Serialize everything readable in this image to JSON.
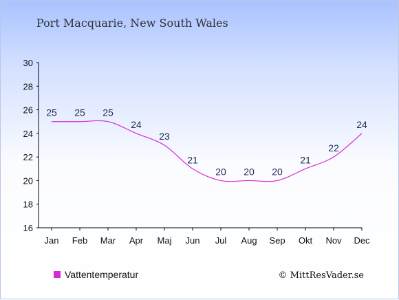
{
  "title": "Port Macquarie, New South Wales",
  "credit": "© MittResVader.se",
  "colors": {
    "series": "#d52ad4",
    "axis": "#000000"
  },
  "chart_data": {
    "type": "line",
    "title": "Port Macquarie, New South Wales",
    "xlabel": "",
    "ylabel": "",
    "categories": [
      "Jan",
      "Feb",
      "Mar",
      "Apr",
      "Maj",
      "Jun",
      "Jul",
      "Aug",
      "Sep",
      "Okt",
      "Nov",
      "Dec"
    ],
    "series": [
      {
        "name": "Vattentemperatur",
        "values": [
          25,
          25,
          25,
          24,
          23,
          21,
          20,
          20,
          20,
          21,
          22,
          24
        ]
      }
    ],
    "ylim": [
      16,
      30
    ],
    "yticks": [
      16,
      18,
      20,
      22,
      24,
      26,
      28,
      30
    ],
    "grid": false,
    "legend": "bottom-left"
  }
}
